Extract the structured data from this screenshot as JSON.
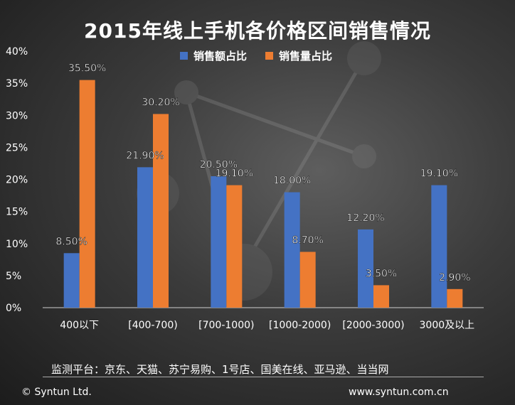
{
  "chart_data": {
    "type": "bar",
    "title": "2015年线上手机各价格区间销售情况",
    "categories": [
      "400以下",
      "[400-700)",
      "[700-1000)",
      "[1000-2000)",
      "[2000-3000)",
      "3000及以上"
    ],
    "series": [
      {
        "name": "销售额占比",
        "color": "#4472C4",
        "values": [
          8.5,
          21.9,
          20.5,
          18.0,
          12.2,
          19.1
        ],
        "labels": [
          "8.50%",
          "21.90%",
          "20.50%",
          "18.00%",
          "12.20%",
          "19.10%"
        ]
      },
      {
        "name": "销售量占比",
        "color": "#ED7D31",
        "values": [
          35.5,
          30.2,
          19.1,
          8.7,
          3.5,
          2.9
        ],
        "labels": [
          "35.50%",
          "30.20%",
          "19.10%",
          "8.70%",
          "3.50%",
          "2.90%"
        ]
      }
    ],
    "y_ticks": [
      "0%",
      "5%",
      "10%",
      "15%",
      "20%",
      "25%",
      "30%",
      "35%",
      "40%"
    ],
    "ylim": [
      0,
      40
    ],
    "grid": false,
    "legend_position": "top-center"
  },
  "footer": {
    "source": "监测平台：京东、天猫、苏宁易购、1号店、国美在线、亚马逊、当当网",
    "copyright": "© Syntun Ltd.",
    "website": "www.syntun.com.cn"
  }
}
